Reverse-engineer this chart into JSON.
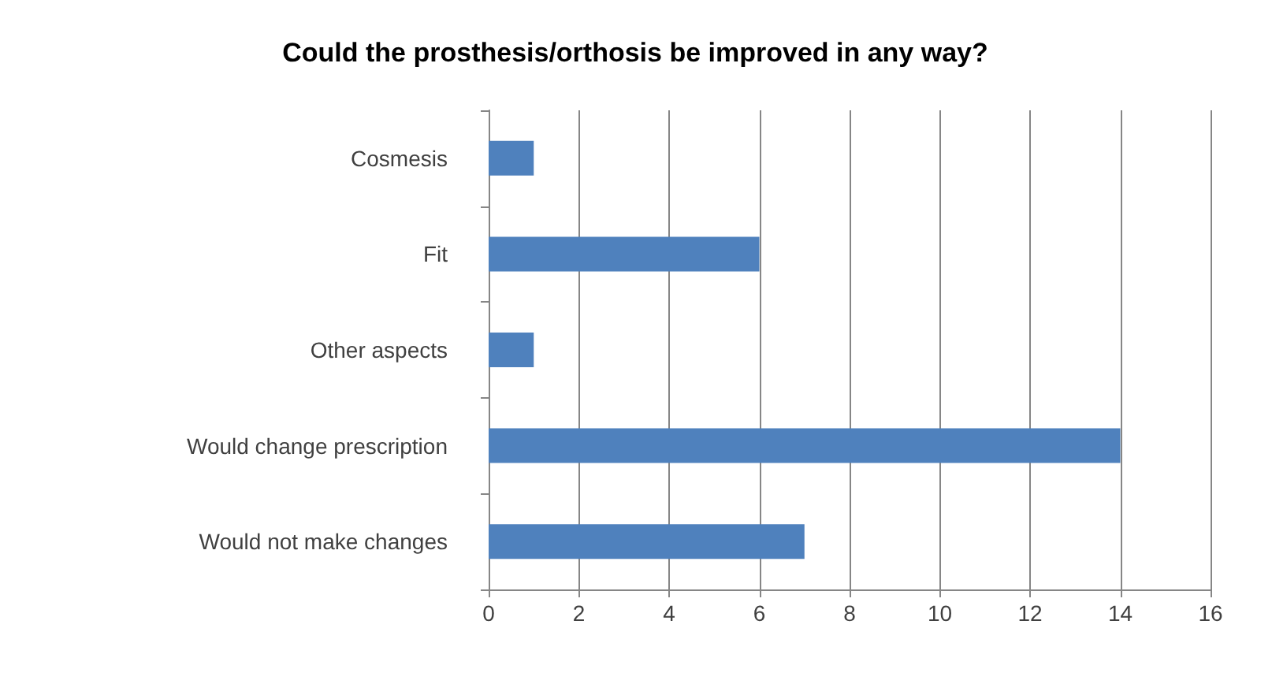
{
  "chart_data": {
    "type": "bar",
    "orientation": "horizontal",
    "title": "Could the prosthesis/orthosis be improved in any way?",
    "categories": [
      "Cosmesis",
      "Fit",
      "Other aspects",
      "Would change prescription",
      "Would not make changes"
    ],
    "values": [
      1,
      6,
      1,
      14,
      7
    ],
    "color": "#4f81bd",
    "xlim": [
      0,
      16
    ],
    "xticks": [
      0,
      2,
      4,
      6,
      8,
      10,
      12,
      14,
      16
    ],
    "grid": "x"
  }
}
